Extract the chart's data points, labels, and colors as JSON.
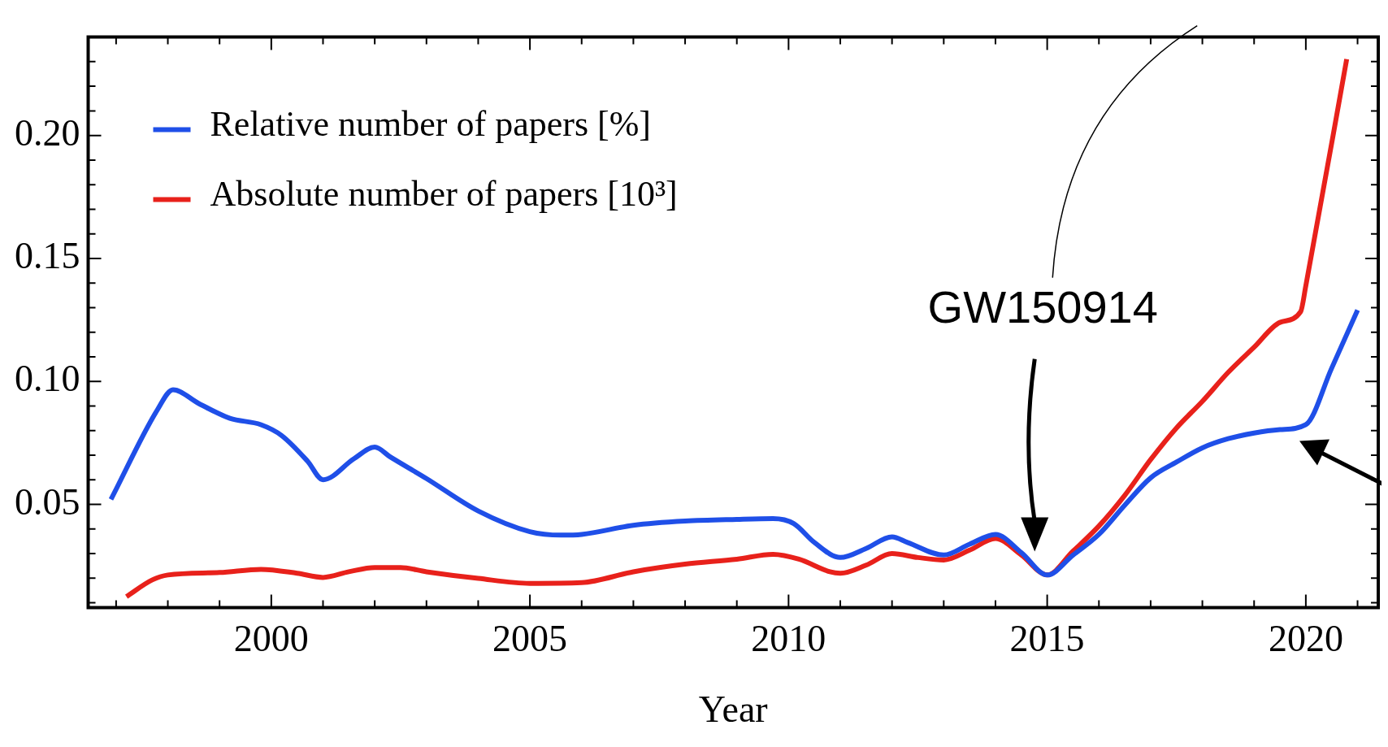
{
  "chart_data": {
    "type": "line",
    "xlabel": "Year",
    "legend": "top left",
    "grid": false,
    "line_style": "solid",
    "marker": "none",
    "xlim": [
      1996.46,
      2021.4
    ],
    "ylim": [
      0.008,
      0.24
    ],
    "xticks": [
      {
        "value": 1997,
        "label": null
      },
      {
        "value": 1998,
        "label": null
      },
      {
        "value": 1999,
        "label": null
      },
      2000,
      {
        "value": 2001,
        "label": null
      },
      {
        "value": 2002,
        "label": null
      },
      {
        "value": 2003,
        "label": null
      },
      {
        "value": 2004,
        "label": null
      },
      2005,
      {
        "value": 2006,
        "label": null
      },
      {
        "value": 2007,
        "label": null
      },
      {
        "value": 2008,
        "label": null
      },
      {
        "value": 2009,
        "label": null
      },
      2010,
      {
        "value": 2011,
        "label": null
      },
      {
        "value": 2012,
        "label": null
      },
      {
        "value": 2013,
        "label": null
      },
      {
        "value": 2014,
        "label": null
      },
      2015,
      {
        "value": 2016,
        "label": null
      },
      {
        "value": 2017,
        "label": null
      },
      {
        "value": 2018,
        "label": null
      },
      {
        "value": 2019,
        "label": null
      },
      2020,
      {
        "value": 2021,
        "label": null
      }
    ],
    "yticks": [
      {
        "value": 0.01,
        "label": null
      },
      {
        "value": 0.02,
        "label": null
      },
      {
        "value": 0.03,
        "label": null
      },
      {
        "value": 0.04,
        "label": null
      },
      {
        "value": 0.05,
        "label": "0.05"
      },
      {
        "value": 0.06,
        "label": null
      },
      {
        "value": 0.07,
        "label": null
      },
      {
        "value": 0.08,
        "label": null
      },
      {
        "value": 0.09,
        "label": null
      },
      {
        "value": 0.1,
        "label": "0.10"
      },
      {
        "value": 0.11,
        "label": null
      },
      {
        "value": 0.12,
        "label": null
      },
      {
        "value": 0.13,
        "label": null
      },
      {
        "value": 0.14,
        "label": null
      },
      {
        "value": 0.15,
        "label": "0.15"
      },
      {
        "value": 0.16,
        "label": null
      },
      {
        "value": 0.17,
        "label": null
      },
      {
        "value": 0.18,
        "label": null
      },
      {
        "value": 0.19,
        "label": null
      },
      {
        "value": 0.2,
        "label": "0.20"
      },
      {
        "value": 0.21,
        "label": null
      },
      {
        "value": 0.22,
        "label": null
      },
      {
        "value": 0.23,
        "label": null
      }
    ],
    "annotations": [
      "GW150914"
    ],
    "series": [
      {
        "name": "Relative number of papers [%]",
        "color": "#1f4fe8",
        "x": [
          1996.9,
          1997.8,
          1998.1,
          1998.6,
          1999.2,
          1999.8,
          2000.2,
          2000.7,
          2001.0,
          2001.6,
          2002.0,
          2002.3,
          2003.0,
          2004.0,
          2005.0,
          2005.6,
          2006.0,
          2007.0,
          2008.0,
          2009.0,
          2009.7,
          2010.1,
          2010.5,
          2011.0,
          2011.5,
          2012.0,
          2012.3,
          2013.0,
          2013.5,
          2014.0,
          2014.5,
          2015.0,
          2015.5,
          2016.0,
          2016.5,
          2017.0,
          2017.5,
          2018.0,
          2018.5,
          2019.0,
          2019.5,
          2020.0,
          2020.5,
          2021.0
        ],
        "values": [
          0.052,
          0.0885,
          0.0966,
          0.091,
          0.085,
          0.0824,
          0.078,
          0.0676,
          0.06,
          0.0686,
          0.0733,
          0.0693,
          0.0605,
          0.0473,
          0.0389,
          0.0375,
          0.0378,
          0.0415,
          0.0432,
          0.0439,
          0.0442,
          0.0422,
          0.0345,
          0.0284,
          0.0321,
          0.0368,
          0.0345,
          0.0294,
          0.0338,
          0.0378,
          0.0304,
          0.0213,
          0.0294,
          0.0378,
          0.0497,
          0.0608,
          0.0672,
          0.073,
          0.0767,
          0.079,
          0.0804,
          0.0824,
          0.1054,
          0.129
        ]
      },
      {
        "name": "Absolute number of papers [10³]",
        "color": "#e8211b",
        "x": [
          1997.2,
          1997.7,
          1998.0,
          1999.0,
          1999.8,
          2000.5,
          2001.0,
          2001.5,
          2002.0,
          2002.5,
          2003.0,
          2004.0,
          2005.0,
          2006.0,
          2007.0,
          2008.0,
          2009.0,
          2009.7,
          2010.2,
          2010.8,
          2011.0,
          2011.5,
          2012.0,
          2012.5,
          2013.0,
          2013.5,
          2014.0,
          2014.5,
          2015.0,
          2015.5,
          2016.0,
          2016.5,
          2017.0,
          2017.5,
          2018.0,
          2018.5,
          2019.0,
          2019.5,
          2019.9,
          2020.0,
          2020.79
        ],
        "values": [
          0.0125,
          0.0193,
          0.0213,
          0.0223,
          0.0236,
          0.022,
          0.0203,
          0.0226,
          0.0243,
          0.0243,
          0.0226,
          0.0199,
          0.0179,
          0.0182,
          0.0226,
          0.0257,
          0.0277,
          0.0297,
          0.0277,
          0.0226,
          0.022,
          0.0253,
          0.03,
          0.0284,
          0.0274,
          0.0314,
          0.0361,
          0.0294,
          0.0213,
          0.031,
          0.0412,
          0.0537,
          0.0682,
          0.0811,
          0.0919,
          0.1037,
          0.1139,
          0.124,
          0.1284,
          0.1389,
          0.231
        ]
      }
    ]
  }
}
